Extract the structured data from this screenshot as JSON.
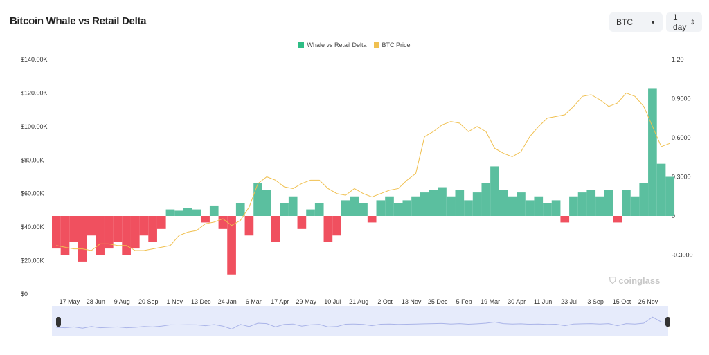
{
  "header": {
    "title": "Bitcoin Whale vs Retail Delta",
    "symbol_select": "BTC",
    "interval_select": "1 day"
  },
  "watermark": "coinglass",
  "colors": {
    "delta_positive": "#5bbf9f",
    "delta_negative": "#f0505f",
    "price": "#f0c050",
    "legend_delta": "#2ebd85",
    "navigator": "#e6ebfb"
  },
  "chart_data": {
    "type": "bar+line",
    "legend": [
      "Whale vs Retail Delta",
      "BTC Price"
    ],
    "legend_placement": "top-center",
    "x_range": [
      "2023-04-19",
      "2025-12-28"
    ],
    "x_tick_labels": [
      "17 May",
      "28 Jun",
      "9 Aug",
      "20 Sep",
      "1 Nov",
      "13 Dec",
      "24 Jan",
      "6 Mar",
      "17 Apr",
      "29 May",
      "10 Jul",
      "21 Aug",
      "2 Oct",
      "13 Nov",
      "25 Dec",
      "5 Feb",
      "19 Mar",
      "30 Apr",
      "11 Jun",
      "23 Jul",
      "3 Sep",
      "15 Oct",
      "26 Nov"
    ],
    "x_tick_first_date": "2023-05-17",
    "left_axis": {
      "ylim": [
        0,
        140000
      ],
      "tick_labels": [
        "$0",
        "$20.00K",
        "$40.00K",
        "$60.00K",
        "$80.00K",
        "$100.00K",
        "$120.00K",
        "$140.00K"
      ]
    },
    "right_axis": {
      "ylim": [
        -0.6,
        1.2
      ],
      "tick_values": [
        -0.3,
        0,
        0.3,
        0.6,
        0.9,
        1.2
      ],
      "tick_labels": [
        "-0.3000",
        "0",
        "0.3000",
        "0.6000",
        "0.9000",
        "1.20"
      ]
    },
    "dates_start": "2023-04-19",
    "dates_step_days": 14,
    "series": [
      {
        "name": "BTC Price",
        "axis": "left",
        "unit": "K USD",
        "values": [
          29,
          28,
          27,
          27,
          26,
          30,
          30,
          29,
          29,
          26,
          26,
          27,
          28,
          29,
          35,
          37,
          38,
          42,
          43,
          45,
          41,
          44,
          52,
          66,
          70,
          68,
          64,
          63,
          66,
          68,
          68,
          63,
          60,
          59,
          63,
          60,
          58,
          60,
          62,
          63,
          68,
          72,
          94,
          97,
          101,
          103,
          102,
          97,
          100,
          97,
          87,
          84,
          82,
          85,
          94,
          100,
          105,
          106,
          107,
          112,
          118,
          119,
          116,
          112,
          114,
          120,
          118,
          112,
          100,
          88,
          90
        ]
      },
      {
        "name": "Whale vs Retail Delta",
        "axis": "right",
        "values": [
          -0.25,
          -0.3,
          -0.2,
          -0.35,
          -0.15,
          -0.3,
          -0.25,
          -0.2,
          -0.3,
          -0.25,
          -0.15,
          -0.2,
          -0.1,
          0.05,
          0.04,
          0.06,
          0.05,
          -0.05,
          0.08,
          -0.1,
          -0.45,
          0.1,
          -0.15,
          0.25,
          0.2,
          -0.2,
          0.1,
          0.15,
          -0.1,
          0.05,
          0.1,
          -0.2,
          -0.15,
          0.12,
          0.15,
          0.1,
          -0.05,
          0.12,
          0.15,
          0.1,
          0.12,
          0.15,
          0.18,
          0.2,
          0.22,
          0.15,
          0.2,
          0.12,
          0.18,
          0.25,
          0.38,
          0.2,
          0.15,
          0.18,
          0.12,
          0.15,
          0.1,
          0.12,
          -0.05,
          0.15,
          0.18,
          0.2,
          0.15,
          0.2,
          -0.05,
          0.2,
          0.15,
          0.25,
          0.98,
          0.4,
          0.3
        ]
      }
    ]
  }
}
